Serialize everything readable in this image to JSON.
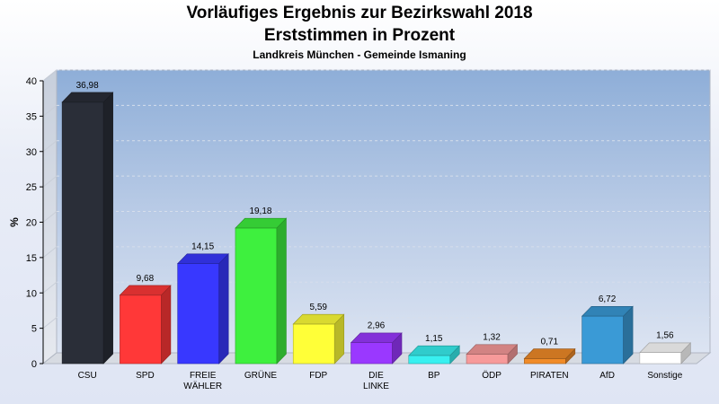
{
  "chart_data": {
    "type": "bar",
    "title": "Vorläufiges Ergebnis zur Bezirkswahl 2018",
    "subtitle": "Erststimmen in Prozent",
    "caption": "Landkreis München - Gemeinde Ismaning",
    "ylabel": "%",
    "ylim": [
      0,
      40
    ],
    "yticks": [
      0,
      5,
      10,
      15,
      20,
      25,
      30,
      35,
      40
    ],
    "grid": true,
    "categories": [
      "CSU",
      "SPD",
      "FREIE\nWÄHLER",
      "GRÜNE",
      "FDP",
      "DIE\nLINKE",
      "BP",
      "ÖDP",
      "PIRATEN",
      "AfD",
      "Sonstige"
    ],
    "values": [
      36.98,
      9.68,
      14.15,
      19.18,
      5.59,
      2.96,
      1.15,
      1.32,
      0.71,
      6.72,
      1.56
    ],
    "value_labels": [
      "36,98",
      "9,68",
      "14,15",
      "19,18",
      "5,59",
      "2,96",
      "1,15",
      "1,32",
      "0,71",
      "6,72",
      "1,56"
    ],
    "colors": [
      "#2a2e38",
      "#ff3838",
      "#3838ff",
      "#3ef03e",
      "#ffff38",
      "#9a38ff",
      "#38f0f0",
      "#f79a9a",
      "#f08b28",
      "#3a9ad6",
      "#ffffff"
    ]
  }
}
